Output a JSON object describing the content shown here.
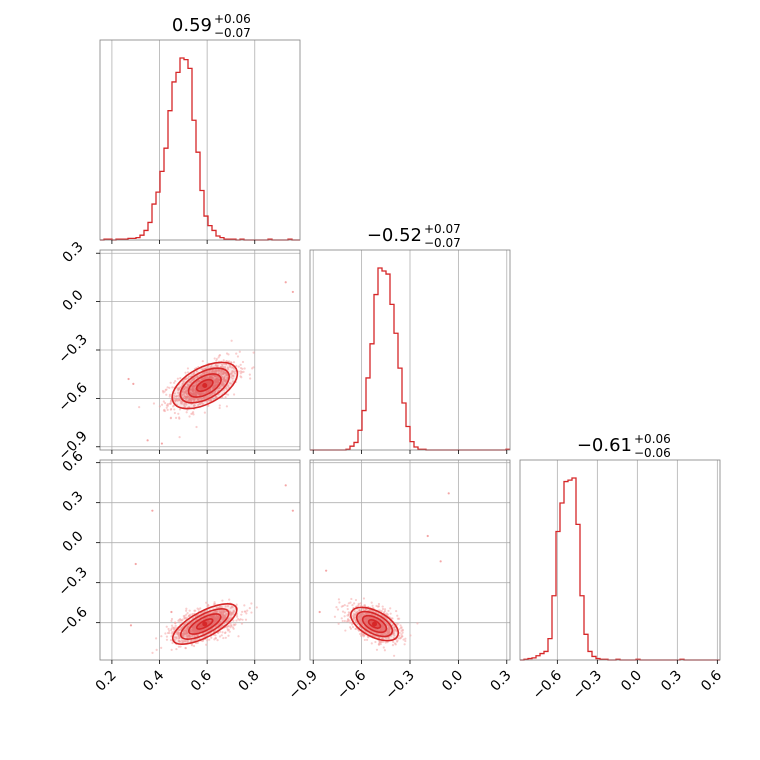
{
  "chart_data": {
    "type": "corner",
    "color": "#d62728",
    "scatter_color": "#f4a6a6",
    "grid": true,
    "titles": [
      {
        "value": "0.59",
        "plus": "+0.06",
        "minus": "−0.07"
      },
      {
        "value": "−0.52",
        "plus": "+0.07",
        "minus": "−0.07"
      },
      {
        "value": "−0.61",
        "plus": "+0.06",
        "minus": "−0.06"
      }
    ],
    "ranges": [
      [
        0.15,
        0.99
      ],
      [
        -0.92,
        0.32
      ],
      [
        -0.88,
        0.62
      ]
    ],
    "ticks": [
      {
        "values": [
          0.2,
          0.4,
          0.6,
          0.8
        ],
        "labels": [
          "0.2",
          "0.4",
          "0.6",
          "0.8"
        ]
      },
      {
        "values": [
          -0.9,
          -0.6,
          -0.3,
          0.0,
          0.3
        ],
        "labels": [
          "−0.9",
          "−0.6",
          "−0.3",
          "0.0",
          "0.3"
        ]
      },
      {
        "values": [
          -0.6,
          -0.3,
          0.0,
          0.3,
          0.6
        ],
        "labels": [
          "−0.6",
          "−0.3",
          "0.0",
          "0.3",
          "0.6"
        ]
      }
    ],
    "histograms": [
      {
        "bins": [
          0.15,
          0.99
        ],
        "counts": [
          0,
          1,
          1,
          0,
          1,
          1,
          1,
          2,
          2,
          3,
          6,
          12,
          22,
          45,
          60,
          86,
          115,
          162,
          198,
          210,
          228,
          226,
          215,
          150,
          110,
          62,
          30,
          18,
          12,
          5,
          3,
          1,
          1,
          1,
          0,
          1,
          0,
          0,
          0,
          0,
          0,
          0,
          1,
          0,
          0,
          0,
          0,
          1,
          0,
          0
        ]
      },
      {
        "bins": [
          -0.92,
          0.32
        ],
        "counts": [
          0,
          0,
          0,
          0,
          0,
          0,
          0,
          0,
          0,
          1,
          5,
          10,
          26,
          52,
          95,
          140,
          205,
          240,
          236,
          232,
          192,
          154,
          108,
          62,
          31,
          11,
          4,
          1,
          1,
          0,
          0,
          0,
          0,
          0,
          0,
          0,
          0,
          0,
          0,
          0,
          0,
          0,
          0,
          0,
          0,
          0,
          0,
          0,
          0,
          1
        ]
      },
      {
        "bins": [
          -0.88,
          0.62
        ],
        "counts": [
          0,
          1,
          2,
          3,
          6,
          9,
          12,
          30,
          90,
          180,
          220,
          250,
          252,
          255,
          190,
          90,
          36,
          12,
          5,
          2,
          1,
          1,
          0,
          0,
          1,
          0,
          0,
          0,
          0,
          1,
          0,
          0,
          0,
          0,
          0,
          0,
          0,
          0,
          0,
          0,
          1,
          0,
          0,
          0,
          0,
          0,
          0,
          0,
          0,
          0
        ]
      }
    ],
    "pairs": [
      {
        "x": 0,
        "y": 1,
        "mean": [
          0.59,
          -0.52
        ],
        "sd": [
          0.065,
          0.07
        ],
        "rho": 0.55,
        "outliers": [
          [
            0.96,
            0.06
          ],
          [
            0.93,
            0.12
          ],
          [
            0.29,
            -0.51
          ],
          [
            0.35,
            -0.86
          ],
          [
            0.41,
            -0.88
          ],
          [
            0.27,
            -0.48
          ]
        ]
      },
      {
        "x": 0,
        "y": 2,
        "mean": [
          0.59,
          -0.61
        ],
        "sd": [
          0.065,
          0.06
        ],
        "rho": 0.5,
        "outliers": [
          [
            0.96,
            0.24
          ],
          [
            0.93,
            0.43
          ],
          [
            0.3,
            -0.16
          ],
          [
            0.37,
            0.24
          ],
          [
            0.45,
            -0.52
          ],
          [
            0.28,
            -0.62
          ]
        ]
      },
      {
        "x": 1,
        "y": 2,
        "mean": [
          -0.52,
          -0.61
        ],
        "sd": [
          0.07,
          0.06
        ],
        "rho": -0.5,
        "outliers": [
          [
            -0.06,
            0.37
          ],
          [
            -0.19,
            0.05
          ],
          [
            -0.11,
            -0.14
          ],
          [
            -0.82,
            -0.21
          ],
          [
            -0.86,
            -0.52
          ]
        ]
      }
    ]
  }
}
